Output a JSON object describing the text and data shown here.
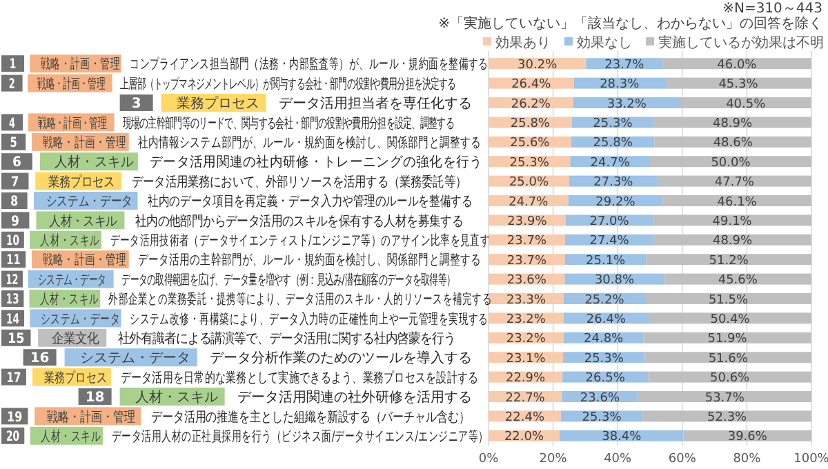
{
  "chart_data": {
    "type": "bar",
    "orientation": "horizontal",
    "stacked": true,
    "annotations": [
      "※N=310～443",
      "※「実施していない」「該当なし、わからない」の回答を除く"
    ],
    "categories": [
      "1 戦略・計画・管理 コンプライアンス担当部門（法務・内部監査等）が、ルール・規約面を整備する",
      "2 戦略・計画・管理 上層部（トップマネジメントレベル）が関与する会社・部門の役割や費用分担を決定する",
      "3 業務プロセス データ活用担当者を専任化する",
      "4 戦略・計画・管理 現場の主幹部門等のリードで、関与する会社・部門の役割や費用分担を設定、調整する",
      "5 戦略・計画・管理 社内情報システム部門が、ルール・規約面を検討し、関係部門と調整する",
      "6 人材・スキル データ活用関連の社内研修・トレーニングの強化を行う",
      "7 業務プロセス データ活用業務において、外部リソースを活用する（業務委託等）",
      "8 システム・データ 社内のデータ項目を再定義・データ入力や管理のルールを整備する",
      "9 人材・スキル 社内の他部門からデータ活用のスキルを保有する人材を募集する",
      "10 人材・スキル データ活用技術者（データサイエンティスト/エンジニア等）のアサイン比率を見直す",
      "11 戦略・計画・管理 データ活用の主幹部門が、ルール・規約面を検討し、関係部門と調整する",
      "12 システム・データ データの取得範囲を広げ、データ量を増やす（例：見込み/潜在顧客のデータを取得等）",
      "13 人材・スキル 外部企業との業務委託・提携等により、データ活用のスキル・人的リソースを補完する",
      "14 システム・データ システム改修・再構築により、データ入力時の正確性向上や一元管理を実現する",
      "15 企業文化 社外有識者による講演等で、データ活用に関する社内啓蒙を行う",
      "16 システム・データ データ分析作業のためのツールを導入する",
      "17 業務プロセス データ活用を日常的な業務として実施できるよう、業務プロセスを設計する",
      "18 人材・スキル データ活用関連の社外研修を活用する",
      "19 戦略・計画・管理 データ活用の推進を主とした組織を新設する（バーチャル含む）",
      "20 人材・スキル データ活用人材の正社員採用を行う（ビジネス面/データサイエンス/エンジニア等）"
    ],
    "series": [
      {
        "name": "効果あり",
        "color": "#f8cbad",
        "values": [
          30.2,
          26.4,
          26.2,
          25.8,
          25.6,
          25.3,
          25.0,
          24.7,
          23.9,
          23.7,
          23.7,
          23.6,
          23.3,
          23.2,
          23.2,
          23.1,
          22.9,
          22.7,
          22.4,
          22.0
        ],
        "value_labels": [
          "30.2%",
          "26.4%",
          "26.2%",
          "25.8%",
          "25.6%",
          "25.3%",
          "25.0%",
          "24.7%",
          "23.9%",
          "23.7%",
          "23.7%",
          "23.6%",
          "23.3%",
          "23.2%",
          "23.2%",
          "23.1%",
          "22.9%",
          "22.7%",
          "22.4%",
          "22.0%"
        ]
      },
      {
        "name": "効果なし",
        "color": "#9dc3e6",
        "values": [
          23.7,
          28.3,
          33.2,
          25.3,
          25.8,
          24.7,
          27.3,
          29.2,
          27.0,
          27.4,
          25.1,
          30.8,
          25.2,
          26.4,
          24.8,
          25.3,
          26.5,
          23.6,
          25.3,
          38.4
        ],
        "value_labels": [
          "23.7%",
          "28.3%",
          "33.2%",
          "25.3%",
          "25.8%",
          "24.7%",
          "27.3%",
          "29.2%",
          "27.0%",
          "27.4%",
          "25.1%",
          "30.8%",
          "25.2%",
          "26.4%",
          "24.8%",
          "25.3%",
          "26.5%",
          "23.6%",
          "25.3%",
          "38.4%"
        ]
      },
      {
        "name": "実施しているが効果は不明",
        "color": "#bfbfbf",
        "values": [
          46.0,
          45.3,
          40.5,
          48.9,
          48.6,
          50.0,
          47.7,
          46.1,
          49.1,
          48.9,
          51.2,
          45.6,
          51.5,
          50.4,
          51.9,
          51.6,
          50.6,
          53.7,
          52.3,
          39.6
        ],
        "value_labels": [
          "46.0%",
          "45.3%",
          "40.5%",
          "48.9%",
          "48.6%",
          "50.0%",
          "47.7%",
          "46.1%",
          "49.1%",
          "48.9%",
          "51.2%",
          "45.6%",
          "51.5%",
          "50.4%",
          "51.9%",
          "51.6%",
          "50.6%",
          "53.7%",
          "52.3%",
          "39.6%"
        ]
      }
    ],
    "xlim": [
      0,
      100
    ],
    "xticks": [
      {
        "value": 0,
        "label": "0%"
      },
      {
        "value": 20,
        "label": "20%"
      },
      {
        "value": 40,
        "label": "40%"
      },
      {
        "value": 60,
        "label": "60%"
      },
      {
        "value": 80,
        "label": "80%"
      },
      {
        "value": 100,
        "label": "100%"
      }
    ],
    "grid": "x",
    "legend": "top"
  }
}
